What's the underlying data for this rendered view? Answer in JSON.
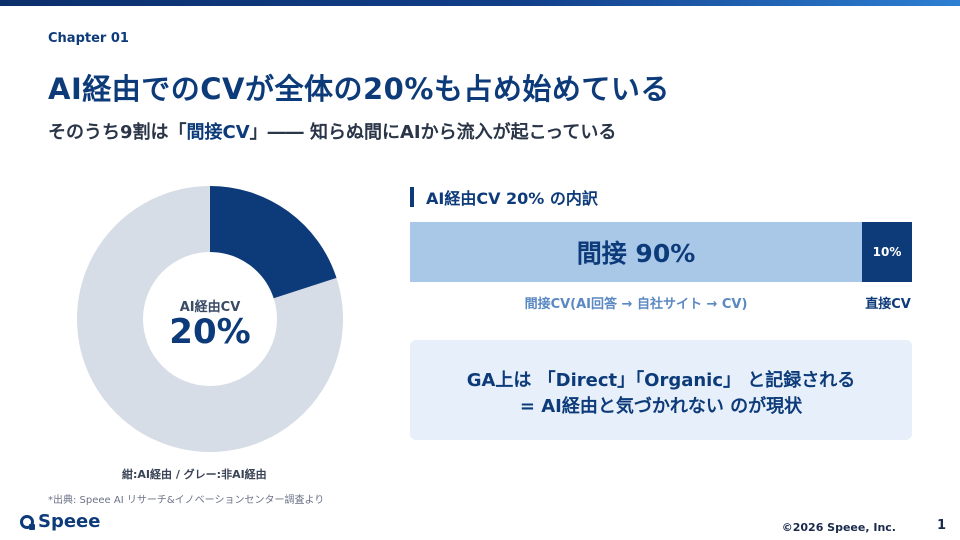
{
  "header": {
    "chapter": "Chapter 01",
    "title": "AI経由でのCVが全体の20%も占め始めている",
    "subtitle_pre": "そのうち9割は「",
    "subtitle_hl": "間接CV",
    "subtitle_post": "」―― 知らぬ間にAIから流入が起こっている"
  },
  "donut": {
    "label_small": "AI経由CV",
    "label_big": "20%",
    "ai_share": 0.2,
    "colors": {
      "ai": "#0d3b7a",
      "other": "#d6dde7"
    }
  },
  "legend_note": "紺:AI経由 / グレー:非AI経由",
  "source_note": "*出典: Speee AI リサーチ&イノベーションセンター調査より",
  "breakdown": {
    "title": "AI経由CV 20% の内訳",
    "indirect_label": "間接 90%",
    "indirect_share": 0.9,
    "direct_label": "10%",
    "direct_share": 0.1,
    "indirect_caption": "間接CV(AI回答 → 自社サイト → CV)",
    "direct_caption": "直接CV",
    "colors": {
      "indirect": "#a9c8e8",
      "direct": "#0d3b7a"
    }
  },
  "callout": {
    "line1": "GA上は 「Direct」「Organic」 と記録される",
    "line2": "= AI経由と気づかれない のが現状"
  },
  "brand": {
    "logo_text": "Speee",
    "icon": "speee-logo-icon"
  },
  "footer": {
    "copyright": "©2026 Speee, Inc.",
    "page_number": "1"
  }
}
